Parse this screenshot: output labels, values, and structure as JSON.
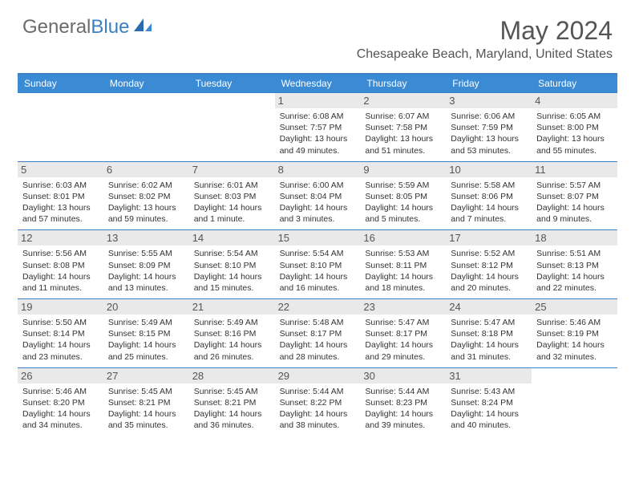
{
  "logo": {
    "text1": "General",
    "text2": "Blue"
  },
  "title": "May 2024",
  "location": "Chesapeake Beach, Maryland, United States",
  "weekdays": [
    "Sunday",
    "Monday",
    "Tuesday",
    "Wednesday",
    "Thursday",
    "Friday",
    "Saturday"
  ],
  "colors": {
    "header_bg": "#3b8bd4",
    "border": "#3b7fc4",
    "daynum_bg": "#e9e9e9",
    "text": "#333333",
    "title_text": "#555555"
  },
  "weeks": [
    [
      {
        "n": "",
        "sr": "",
        "ss": "",
        "d1": "",
        "d2": ""
      },
      {
        "n": "",
        "sr": "",
        "ss": "",
        "d1": "",
        "d2": ""
      },
      {
        "n": "",
        "sr": "",
        "ss": "",
        "d1": "",
        "d2": ""
      },
      {
        "n": "1",
        "sr": "Sunrise: 6:08 AM",
        "ss": "Sunset: 7:57 PM",
        "d1": "Daylight: 13 hours",
        "d2": "and 49 minutes."
      },
      {
        "n": "2",
        "sr": "Sunrise: 6:07 AM",
        "ss": "Sunset: 7:58 PM",
        "d1": "Daylight: 13 hours",
        "d2": "and 51 minutes."
      },
      {
        "n": "3",
        "sr": "Sunrise: 6:06 AM",
        "ss": "Sunset: 7:59 PM",
        "d1": "Daylight: 13 hours",
        "d2": "and 53 minutes."
      },
      {
        "n": "4",
        "sr": "Sunrise: 6:05 AM",
        "ss": "Sunset: 8:00 PM",
        "d1": "Daylight: 13 hours",
        "d2": "and 55 minutes."
      }
    ],
    [
      {
        "n": "5",
        "sr": "Sunrise: 6:03 AM",
        "ss": "Sunset: 8:01 PM",
        "d1": "Daylight: 13 hours",
        "d2": "and 57 minutes."
      },
      {
        "n": "6",
        "sr": "Sunrise: 6:02 AM",
        "ss": "Sunset: 8:02 PM",
        "d1": "Daylight: 13 hours",
        "d2": "and 59 minutes."
      },
      {
        "n": "7",
        "sr": "Sunrise: 6:01 AM",
        "ss": "Sunset: 8:03 PM",
        "d1": "Daylight: 14 hours",
        "d2": "and 1 minute."
      },
      {
        "n": "8",
        "sr": "Sunrise: 6:00 AM",
        "ss": "Sunset: 8:04 PM",
        "d1": "Daylight: 14 hours",
        "d2": "and 3 minutes."
      },
      {
        "n": "9",
        "sr": "Sunrise: 5:59 AM",
        "ss": "Sunset: 8:05 PM",
        "d1": "Daylight: 14 hours",
        "d2": "and 5 minutes."
      },
      {
        "n": "10",
        "sr": "Sunrise: 5:58 AM",
        "ss": "Sunset: 8:06 PM",
        "d1": "Daylight: 14 hours",
        "d2": "and 7 minutes."
      },
      {
        "n": "11",
        "sr": "Sunrise: 5:57 AM",
        "ss": "Sunset: 8:07 PM",
        "d1": "Daylight: 14 hours",
        "d2": "and 9 minutes."
      }
    ],
    [
      {
        "n": "12",
        "sr": "Sunrise: 5:56 AM",
        "ss": "Sunset: 8:08 PM",
        "d1": "Daylight: 14 hours",
        "d2": "and 11 minutes."
      },
      {
        "n": "13",
        "sr": "Sunrise: 5:55 AM",
        "ss": "Sunset: 8:09 PM",
        "d1": "Daylight: 14 hours",
        "d2": "and 13 minutes."
      },
      {
        "n": "14",
        "sr": "Sunrise: 5:54 AM",
        "ss": "Sunset: 8:10 PM",
        "d1": "Daylight: 14 hours",
        "d2": "and 15 minutes."
      },
      {
        "n": "15",
        "sr": "Sunrise: 5:54 AM",
        "ss": "Sunset: 8:10 PM",
        "d1": "Daylight: 14 hours",
        "d2": "and 16 minutes."
      },
      {
        "n": "16",
        "sr": "Sunrise: 5:53 AM",
        "ss": "Sunset: 8:11 PM",
        "d1": "Daylight: 14 hours",
        "d2": "and 18 minutes."
      },
      {
        "n": "17",
        "sr": "Sunrise: 5:52 AM",
        "ss": "Sunset: 8:12 PM",
        "d1": "Daylight: 14 hours",
        "d2": "and 20 minutes."
      },
      {
        "n": "18",
        "sr": "Sunrise: 5:51 AM",
        "ss": "Sunset: 8:13 PM",
        "d1": "Daylight: 14 hours",
        "d2": "and 22 minutes."
      }
    ],
    [
      {
        "n": "19",
        "sr": "Sunrise: 5:50 AM",
        "ss": "Sunset: 8:14 PM",
        "d1": "Daylight: 14 hours",
        "d2": "and 23 minutes."
      },
      {
        "n": "20",
        "sr": "Sunrise: 5:49 AM",
        "ss": "Sunset: 8:15 PM",
        "d1": "Daylight: 14 hours",
        "d2": "and 25 minutes."
      },
      {
        "n": "21",
        "sr": "Sunrise: 5:49 AM",
        "ss": "Sunset: 8:16 PM",
        "d1": "Daylight: 14 hours",
        "d2": "and 26 minutes."
      },
      {
        "n": "22",
        "sr": "Sunrise: 5:48 AM",
        "ss": "Sunset: 8:17 PM",
        "d1": "Daylight: 14 hours",
        "d2": "and 28 minutes."
      },
      {
        "n": "23",
        "sr": "Sunrise: 5:47 AM",
        "ss": "Sunset: 8:17 PM",
        "d1": "Daylight: 14 hours",
        "d2": "and 29 minutes."
      },
      {
        "n": "24",
        "sr": "Sunrise: 5:47 AM",
        "ss": "Sunset: 8:18 PM",
        "d1": "Daylight: 14 hours",
        "d2": "and 31 minutes."
      },
      {
        "n": "25",
        "sr": "Sunrise: 5:46 AM",
        "ss": "Sunset: 8:19 PM",
        "d1": "Daylight: 14 hours",
        "d2": "and 32 minutes."
      }
    ],
    [
      {
        "n": "26",
        "sr": "Sunrise: 5:46 AM",
        "ss": "Sunset: 8:20 PM",
        "d1": "Daylight: 14 hours",
        "d2": "and 34 minutes."
      },
      {
        "n": "27",
        "sr": "Sunrise: 5:45 AM",
        "ss": "Sunset: 8:21 PM",
        "d1": "Daylight: 14 hours",
        "d2": "and 35 minutes."
      },
      {
        "n": "28",
        "sr": "Sunrise: 5:45 AM",
        "ss": "Sunset: 8:21 PM",
        "d1": "Daylight: 14 hours",
        "d2": "and 36 minutes."
      },
      {
        "n": "29",
        "sr": "Sunrise: 5:44 AM",
        "ss": "Sunset: 8:22 PM",
        "d1": "Daylight: 14 hours",
        "d2": "and 38 minutes."
      },
      {
        "n": "30",
        "sr": "Sunrise: 5:44 AM",
        "ss": "Sunset: 8:23 PM",
        "d1": "Daylight: 14 hours",
        "d2": "and 39 minutes."
      },
      {
        "n": "31",
        "sr": "Sunrise: 5:43 AM",
        "ss": "Sunset: 8:24 PM",
        "d1": "Daylight: 14 hours",
        "d2": "and 40 minutes."
      },
      {
        "n": "",
        "sr": "",
        "ss": "",
        "d1": "",
        "d2": ""
      }
    ]
  ]
}
